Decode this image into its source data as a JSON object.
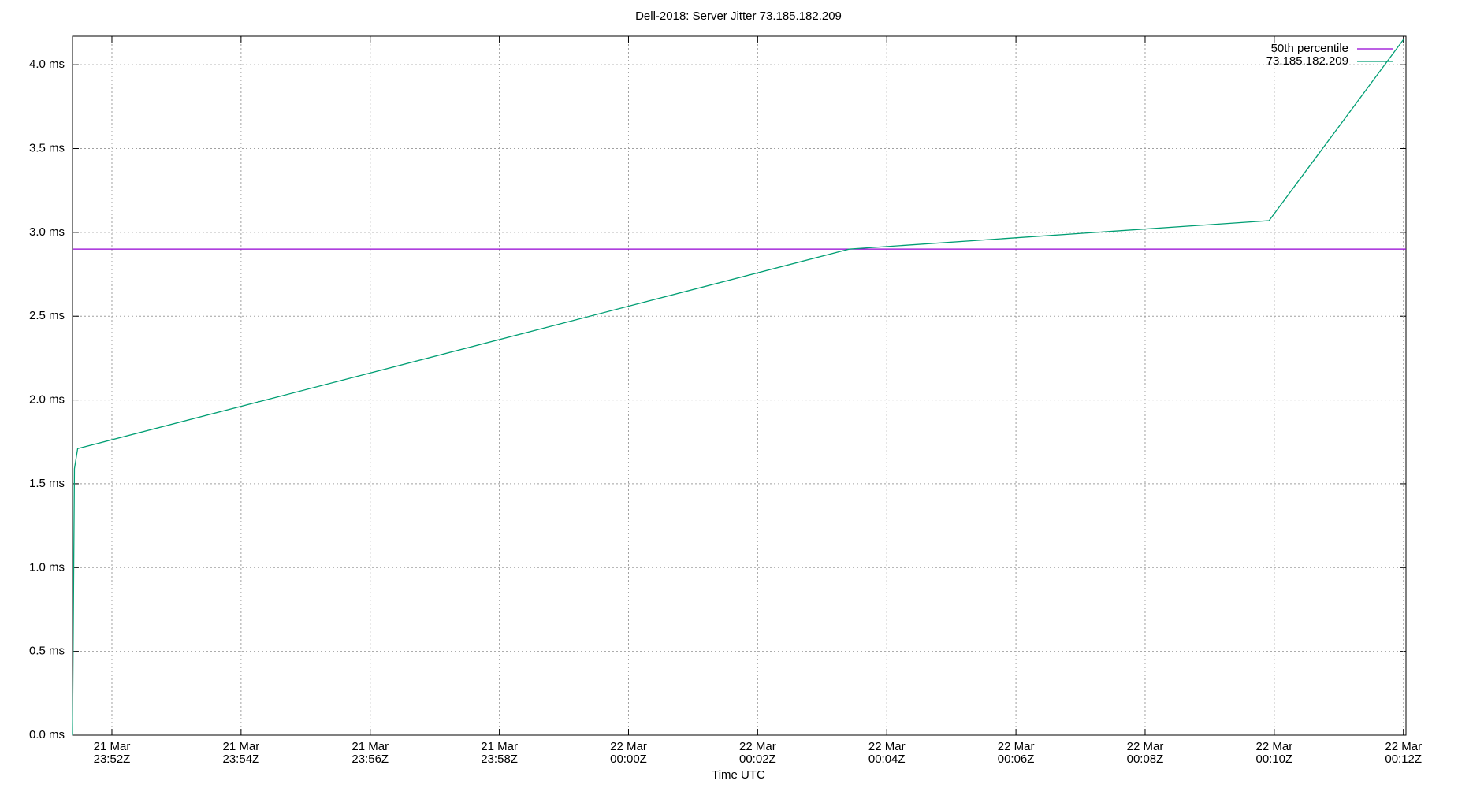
{
  "chart_data": {
    "type": "line",
    "title": "Dell-2018: Server Jitter 73.185.182.209",
    "x_label": "Time UTC",
    "xlim": [
      1431.39,
      1452.04
    ],
    "xticks": [
      {
        "value": 1432,
        "label": "21 Mar\n23:52Z"
      },
      {
        "value": 1434,
        "label": "21 Mar\n23:54Z"
      },
      {
        "value": 1436,
        "label": "21 Mar\n23:56Z"
      },
      {
        "value": 1438,
        "label": "21 Mar\n23:58Z"
      },
      {
        "value": 1440,
        "label": "22 Mar\n00:00Z"
      },
      {
        "value": 1442,
        "label": "22 Mar\n00:02Z"
      },
      {
        "value": 1444,
        "label": "22 Mar\n00:04Z"
      },
      {
        "value": 1446,
        "label": "22 Mar\n00:06Z"
      },
      {
        "value": 1448,
        "label": "22 Mar\n00:08Z"
      },
      {
        "value": 1450,
        "label": "22 Mar\n00:10Z"
      },
      {
        "value": 1452,
        "label": "22 Mar\n00:12Z"
      }
    ],
    "ylim": [
      0,
      4.17
    ],
    "yticks": [
      {
        "value": 0,
        "label": "0.0 ms"
      },
      {
        "value": 0.5,
        "label": "0.5 ms"
      },
      {
        "value": 1,
        "label": "1.0 ms"
      },
      {
        "value": 1.5,
        "label": "1.5 ms"
      },
      {
        "value": 2,
        "label": "2.0 ms"
      },
      {
        "value": 2.5,
        "label": "2.5 ms"
      },
      {
        "value": 3,
        "label": "3.0 ms"
      },
      {
        "value": 3.5,
        "label": "3.5 ms"
      },
      {
        "value": 4,
        "label": "4.0 ms"
      }
    ],
    "grid": true,
    "legend": "top-right",
    "series": [
      {
        "name": "50th percentile",
        "color": "#9400d3",
        "x": [
          1431.39,
          1452.04
        ],
        "values": [
          2.9,
          2.9
        ]
      },
      {
        "name": "73.185.182.209",
        "color": "#009e73",
        "x": [
          1431.39,
          1431.42,
          1431.47,
          1443.42,
          1449.92,
          1452.0
        ],
        "values": [
          0,
          1.59,
          1.71,
          2.9,
          3.07,
          4.15
        ]
      }
    ]
  }
}
